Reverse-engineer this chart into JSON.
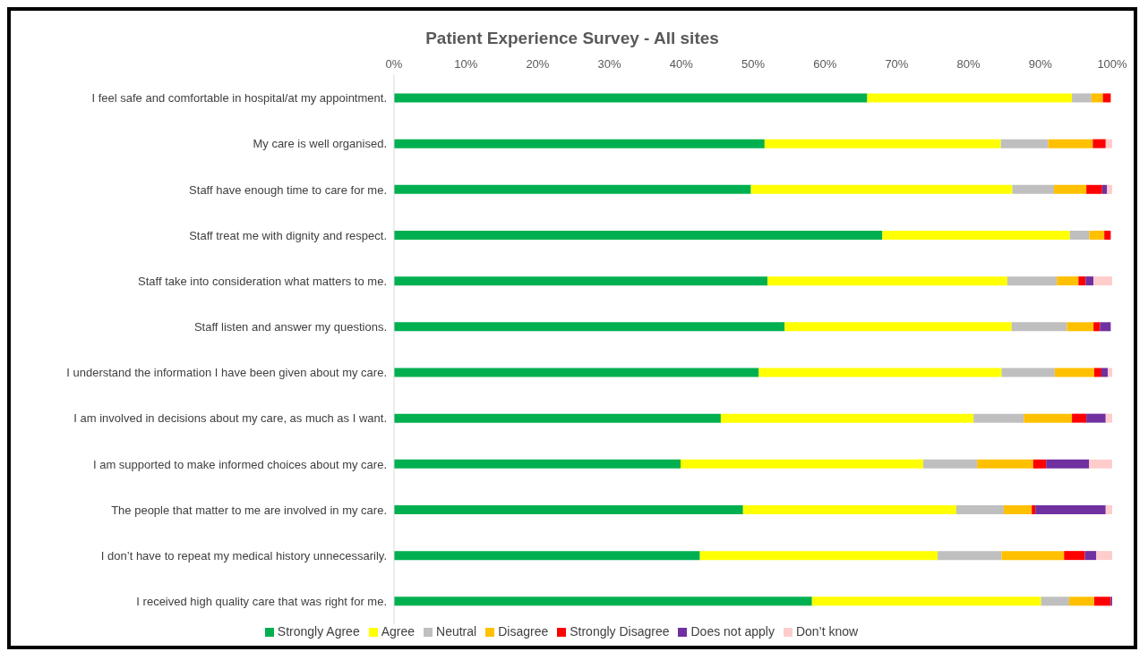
{
  "chart_data": {
    "type": "bar",
    "orientation": "horizontal",
    "stacked": true,
    "title": "Patient Experience Survey - All sites",
    "categories": [
      "I feel safe and comfortable in hospital/at my appointment.",
      "My care is well organised.",
      "Staff have enough time to care for me.",
      "Staff treat me with dignity and respect.",
      "Staff take into consideration what matters to me.",
      "Staff listen and answer my questions.",
      "I understand the information I have been given about my care.",
      "I am involved in decisions about my care, as much as I want.",
      "I am supported to make informed choices about my care.",
      "The people that matter to me are involved in my care.",
      "I don’t have to repeat my medical history unnecessarily.",
      "I received high quality care that was right for me."
    ],
    "series": [
      {
        "name": "Strongly Agree",
        "color": "#00b050",
        "values": [
          65.9,
          51.6,
          49.7,
          68.0,
          52.0,
          54.4,
          50.8,
          45.5,
          39.9,
          48.6,
          42.6,
          58.2
        ]
      },
      {
        "name": "Agree",
        "color": "#ffff00",
        "values": [
          28.5,
          32.9,
          36.4,
          26.1,
          33.4,
          31.6,
          33.8,
          35.2,
          33.8,
          29.7,
          33.1,
          31.9
        ]
      },
      {
        "name": "Neutral",
        "color": "#bfbfbf",
        "values": [
          2.7,
          6.6,
          5.8,
          2.7,
          6.9,
          7.7,
          7.4,
          7.0,
          7.5,
          6.6,
          8.9,
          3.9
        ]
      },
      {
        "name": "Disagree",
        "color": "#ffc000",
        "values": [
          1.6,
          6.2,
          4.5,
          2.1,
          3.0,
          3.7,
          5.5,
          6.7,
          7.8,
          3.9,
          8.7,
          3.5
        ]
      },
      {
        "name": "Strongly Disagree",
        "color": "#ff0000",
        "values": [
          1.1,
          1.8,
          2.2,
          0.9,
          1.0,
          0.9,
          1.0,
          2.0,
          1.8,
          0.5,
          2.9,
          2.3
        ]
      },
      {
        "name": "Does not apply",
        "color": "#7030a0",
        "values": [
          0,
          0,
          0.7,
          0,
          1.1,
          1.5,
          0.9,
          2.7,
          6.0,
          9.8,
          1.6,
          0.2
        ]
      },
      {
        "name": "Don’t know",
        "color": "#ffcccc",
        "values": [
          null,
          0.9,
          0.7,
          null,
          2.6,
          null,
          0.6,
          0.9,
          3.2,
          0.9,
          2.2,
          0
        ]
      }
    ],
    "xlim": [
      0,
      100
    ],
    "xticks": [
      {
        "value": 0,
        "label": "0%"
      },
      {
        "value": 10,
        "label": "10%"
      },
      {
        "value": 20,
        "label": "20%"
      },
      {
        "value": 30,
        "label": "30%"
      },
      {
        "value": 40,
        "label": "40%"
      },
      {
        "value": 50,
        "label": "50%"
      },
      {
        "value": 60,
        "label": "60%"
      },
      {
        "value": 70,
        "label": "70%"
      },
      {
        "value": 80,
        "label": "80%"
      },
      {
        "value": 90,
        "label": "90%"
      },
      {
        "value": 100,
        "label": "100%"
      }
    ],
    "legend": "bottom",
    "grid": false
  }
}
